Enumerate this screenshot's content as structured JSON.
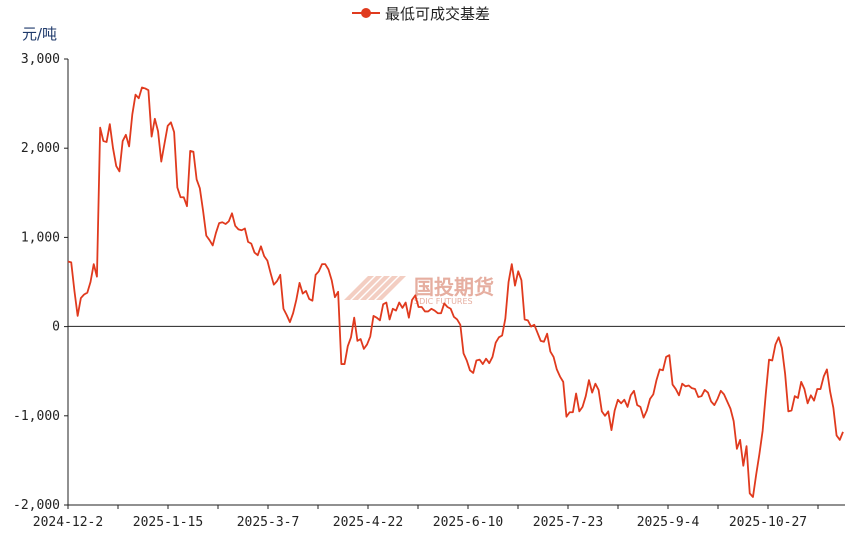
{
  "colors": {
    "series": "#e03a1e",
    "axis": "#222222",
    "watermark": "#e2a090"
  },
  "watermark": {
    "cn": "国投期货",
    "en": "SDIC FUTURES"
  },
  "chart_data": {
    "type": "line",
    "title": "",
    "ylabel": "元/吨",
    "xlabel": "",
    "ylim": [
      -2000,
      3000
    ],
    "yticks": [
      3000,
      2000,
      1000,
      0,
      -1000,
      -2000
    ],
    "ytick_labels": [
      "3,000",
      "2,000",
      "1,000",
      "0",
      "-1,000",
      "-2,000"
    ],
    "xtick_labels": [
      "2024-12-2",
      "2025-1-15",
      "2025-3-7",
      "2025-4-22",
      "2025-6-10",
      "2025-7-23",
      "2025-9-4",
      "2025-10-27"
    ],
    "grid": false,
    "legend_position": "top",
    "series": [
      {
        "name": "最低可成交基差",
        "color": "#e03a1e",
        "values": [
          730,
          720,
          400,
          120,
          320,
          360,
          380,
          500,
          700,
          560,
          2230,
          2080,
          2070,
          2270,
          2000,
          1800,
          1740,
          2080,
          2150,
          2020,
          2380,
          2600,
          2560,
          2680,
          2670,
          2650,
          2130,
          2330,
          2190,
          1850,
          2050,
          2250,
          2290,
          2180,
          1560,
          1450,
          1450,
          1350,
          1970,
          1960,
          1650,
          1550,
          1300,
          1020,
          970,
          910,
          1050,
          1160,
          1170,
          1150,
          1180,
          1270,
          1130,
          1090,
          1080,
          1100,
          950,
          930,
          830,
          800,
          900,
          790,
          740,
          600,
          470,
          510,
          580,
          200,
          130,
          50,
          150,
          300,
          490,
          370,
          400,
          310,
          290,
          580,
          620,
          700,
          700,
          640,
          520,
          330,
          390,
          -420,
          -420,
          -220,
          -120,
          100,
          -160,
          -140,
          -250,
          -200,
          -110,
          120,
          100,
          70,
          250,
          270,
          80,
          200,
          180,
          270,
          210,
          270,
          100,
          300,
          350,
          220,
          220,
          170,
          170,
          200,
          180,
          150,
          150,
          260,
          220,
          200,
          110,
          80,
          20,
          -300,
          -380,
          -490,
          -520,
          -380,
          -370,
          -420,
          -360,
          -410,
          -340,
          -180,
          -120,
          -100,
          90,
          500,
          700,
          460,
          620,
          520,
          80,
          70,
          0,
          20,
          -70,
          -160,
          -170,
          -80,
          -280,
          -340,
          -480,
          -560,
          -620,
          -1010,
          -960,
          -960,
          -750,
          -950,
          -900,
          -780,
          -600,
          -740,
          -640,
          -710,
          -950,
          -1000,
          -950,
          -1160,
          -940,
          -820,
          -860,
          -820,
          -900,
          -770,
          -720,
          -880,
          -900,
          -1020,
          -940,
          -810,
          -760,
          -600,
          -480,
          -490,
          -340,
          -320,
          -650,
          -700,
          -770,
          -640,
          -670,
          -660,
          -690,
          -700,
          -790,
          -780,
          -710,
          -740,
          -840,
          -880,
          -810,
          -720,
          -760,
          -840,
          -920,
          -1060,
          -1370,
          -1270,
          -1560,
          -1340,
          -1870,
          -1910,
          -1660,
          -1430,
          -1170,
          -750,
          -370,
          -380,
          -200,
          -120,
          -240,
          -530,
          -950,
          -940,
          -780,
          -800,
          -620,
          -700,
          -860,
          -770,
          -830,
          -700,
          -700,
          -560,
          -480,
          -730,
          -910,
          -1220,
          -1270,
          -1180
        ]
      }
    ]
  }
}
